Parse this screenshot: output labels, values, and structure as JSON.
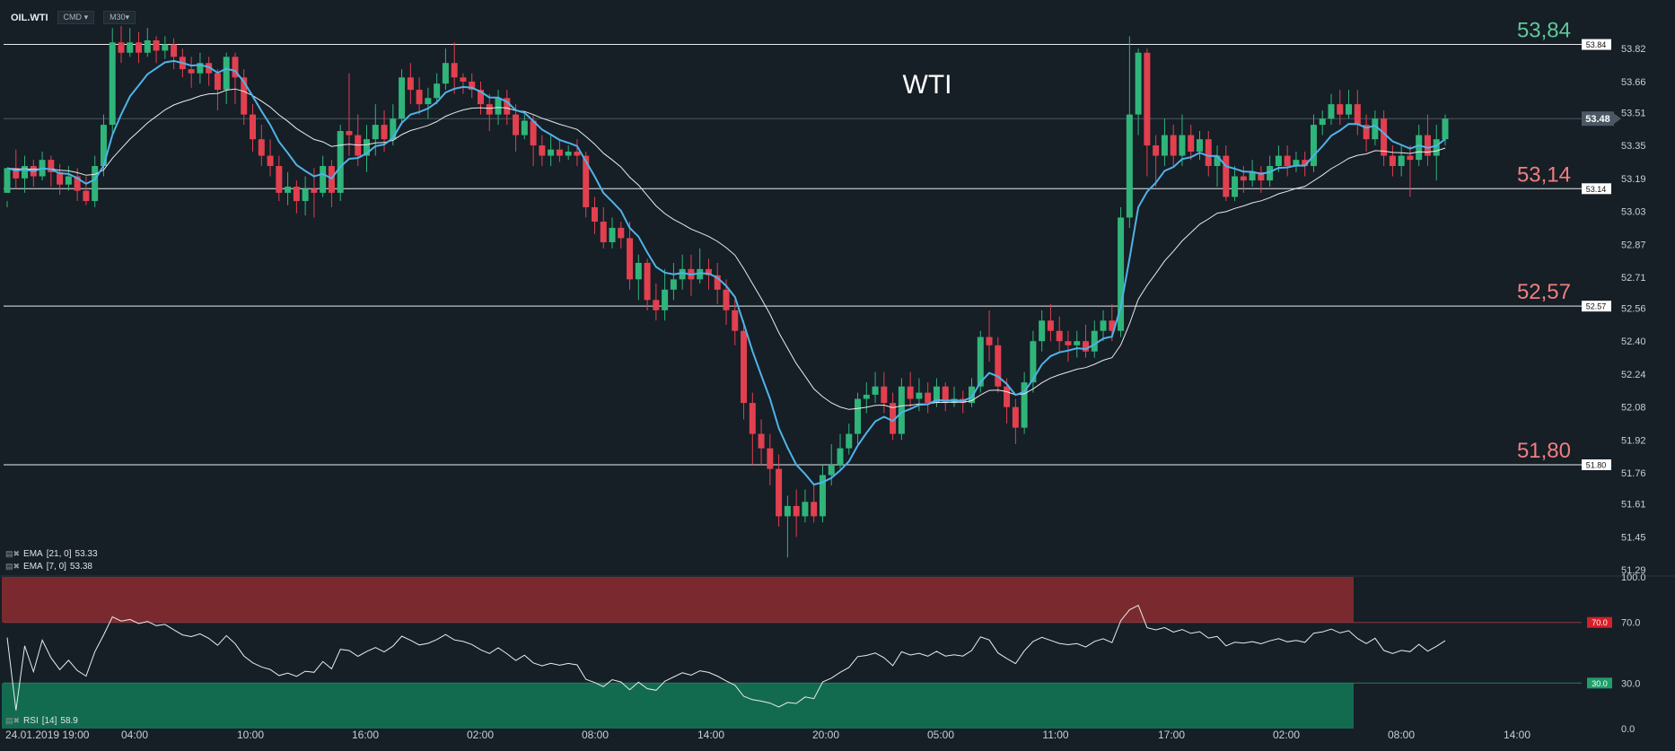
{
  "header": {
    "symbol": "OIL.WTI",
    "instrument_type": "CMD",
    "timeframe": "M30"
  },
  "chart_data": {
    "type": "candlestick",
    "title": "WTI",
    "y_ticks": [
      "53.82",
      "53.66",
      "53.51",
      "53.35",
      "53.19",
      "53.03",
      "52.87",
      "52.71",
      "52.56",
      "52.40",
      "52.24",
      "52.08",
      "51.92",
      "51.76",
      "51.61",
      "51.45",
      "51.29"
    ],
    "y_range": [
      51.26,
      53.96
    ],
    "x_ticks": [
      "24.01.2019  19:00",
      "04:00",
      "10:00",
      "16:00",
      "02:00",
      "08:00",
      "14:00",
      "20:00",
      "05:00",
      "11:00",
      "17:00",
      "02:00",
      "08:00",
      "14:00"
    ],
    "current_price": "53.48",
    "levels": [
      {
        "value": 53.84,
        "label": "53,84",
        "tag": "53.84",
        "color": "#5fc79a"
      },
      {
        "value": 53.14,
        "label": "53,14",
        "tag": "53.14",
        "color": "#ef7f7f"
      },
      {
        "value": 52.57,
        "label": "52,57",
        "tag": "52.57",
        "color": "#ef7f7f"
      },
      {
        "value": 51.8,
        "label": "51,80",
        "tag": "51.80",
        "color": "#ef7f7f"
      }
    ],
    "candles": [
      [
        53.12,
        53.24,
        53.08,
        53.05
      ],
      [
        53.24,
        53.19,
        53.33,
        53.14
      ],
      [
        53.19,
        53.25,
        53.3,
        53.12
      ],
      [
        53.25,
        53.2,
        53.28,
        53.15
      ],
      [
        53.2,
        53.28,
        53.32,
        53.18
      ],
      [
        53.28,
        53.22,
        53.3,
        53.15
      ],
      [
        53.22,
        53.16,
        53.26,
        53.11
      ],
      [
        53.16,
        53.2,
        53.25,
        53.13
      ],
      [
        53.2,
        53.13,
        53.24,
        53.08
      ],
      [
        53.13,
        53.08,
        53.2,
        53.06
      ],
      [
        53.08,
        53.25,
        53.3,
        53.05
      ],
      [
        53.25,
        53.45,
        53.5,
        53.2
      ],
      [
        53.45,
        53.85,
        53.92,
        53.4
      ],
      [
        53.85,
        53.8,
        53.93,
        53.75
      ],
      [
        53.8,
        53.85,
        53.92,
        53.78
      ],
      [
        53.85,
        53.8,
        53.9,
        53.75
      ],
      [
        53.8,
        53.86,
        53.92,
        53.78
      ],
      [
        53.86,
        53.81,
        53.88,
        53.75
      ],
      [
        53.81,
        53.84,
        53.88,
        53.77
      ],
      [
        53.84,
        53.78,
        53.87,
        53.72
      ],
      [
        53.78,
        53.72,
        53.82,
        53.68
      ],
      [
        53.72,
        53.7,
        53.78,
        53.63
      ],
      [
        53.7,
        53.75,
        53.8,
        53.65
      ],
      [
        53.75,
        53.7,
        53.78,
        53.64
      ],
      [
        53.7,
        53.62,
        53.72,
        53.52
      ],
      [
        53.62,
        53.78,
        53.8,
        53.55
      ],
      [
        53.78,
        53.68,
        53.8,
        53.55
      ],
      [
        53.68,
        53.5,
        53.72,
        53.45
      ],
      [
        53.5,
        53.38,
        53.55,
        53.32
      ],
      [
        53.38,
        53.3,
        53.45,
        53.25
      ],
      [
        53.3,
        53.25,
        53.38,
        53.2
      ],
      [
        53.25,
        53.12,
        53.3,
        53.08
      ],
      [
        53.12,
        53.15,
        53.22,
        53.06
      ],
      [
        53.15,
        53.08,
        53.18,
        53.02
      ],
      [
        53.08,
        53.14,
        53.2,
        53.01
      ],
      [
        53.14,
        53.12,
        53.24,
        53.0
      ],
      [
        53.12,
        53.25,
        53.3,
        53.1
      ],
      [
        53.25,
        53.12,
        53.28,
        53.05
      ],
      [
        53.12,
        53.42,
        53.45,
        53.08
      ],
      [
        53.42,
        53.4,
        53.7,
        53.3
      ],
      [
        53.4,
        53.3,
        53.5,
        53.25
      ],
      [
        53.3,
        53.38,
        53.45,
        53.22
      ],
      [
        53.38,
        53.45,
        53.55,
        53.3
      ],
      [
        53.45,
        53.38,
        53.52,
        53.32
      ],
      [
        53.38,
        53.48,
        53.55,
        53.35
      ],
      [
        53.48,
        53.68,
        53.72,
        53.45
      ],
      [
        53.68,
        53.62,
        53.75,
        53.55
      ],
      [
        53.62,
        53.55,
        53.68,
        53.5
      ],
      [
        53.55,
        53.58,
        53.63,
        53.48
      ],
      [
        53.58,
        53.65,
        53.7,
        53.55
      ],
      [
        53.65,
        53.75,
        53.82,
        53.62
      ],
      [
        53.75,
        53.68,
        53.85,
        53.6
      ],
      [
        53.68,
        53.66,
        53.7,
        53.6
      ],
      [
        53.66,
        53.62,
        53.7,
        53.58
      ],
      [
        53.62,
        53.55,
        53.66,
        53.5
      ],
      [
        53.55,
        53.5,
        53.6,
        53.42
      ],
      [
        53.5,
        53.58,
        53.62,
        53.45
      ],
      [
        53.58,
        53.5,
        53.62,
        53.45
      ],
      [
        53.5,
        53.4,
        53.55,
        53.32
      ],
      [
        53.4,
        53.47,
        53.5,
        53.38
      ],
      [
        53.47,
        53.35,
        53.5,
        53.25
      ],
      [
        53.35,
        53.3,
        53.4,
        53.25
      ],
      [
        53.3,
        53.33,
        53.4,
        53.25
      ],
      [
        53.33,
        53.3,
        53.38,
        53.27
      ],
      [
        53.3,
        53.32,
        53.35,
        53.28
      ],
      [
        53.32,
        53.3,
        53.38,
        53.25
      ],
      [
        53.3,
        53.05,
        53.32,
        53.0
      ],
      [
        53.05,
        52.98,
        53.1,
        52.92
      ],
      [
        52.98,
        52.88,
        53.05,
        52.85
      ],
      [
        52.88,
        52.95,
        53.0,
        52.85
      ],
      [
        52.95,
        52.9,
        52.98,
        52.85
      ],
      [
        52.9,
        52.7,
        52.98,
        52.65
      ],
      [
        52.7,
        52.78,
        52.82,
        52.6
      ],
      [
        52.78,
        52.6,
        52.8,
        52.55
      ],
      [
        52.6,
        52.55,
        52.68,
        52.5
      ],
      [
        52.55,
        52.65,
        52.75,
        52.5
      ],
      [
        52.65,
        52.7,
        52.78,
        52.6
      ],
      [
        52.7,
        52.75,
        52.82,
        52.65
      ],
      [
        52.75,
        52.7,
        52.82,
        52.62
      ],
      [
        52.7,
        52.75,
        52.85,
        52.68
      ],
      [
        52.75,
        52.72,
        52.8,
        52.65
      ],
      [
        52.72,
        52.65,
        52.78,
        52.58
      ],
      [
        52.65,
        52.55,
        52.7,
        52.48
      ],
      [
        52.55,
        52.45,
        52.6,
        52.38
      ],
      [
        52.45,
        52.1,
        52.5,
        52.02
      ],
      [
        52.1,
        51.95,
        52.15,
        51.8
      ],
      [
        51.95,
        51.88,
        52.02,
        51.8
      ],
      [
        51.88,
        51.78,
        51.95,
        51.7
      ],
      [
        51.78,
        51.55,
        51.85,
        51.5
      ],
      [
        51.55,
        51.6,
        51.65,
        51.35
      ],
      [
        51.6,
        51.55,
        51.68,
        51.45
      ],
      [
        51.55,
        51.62,
        51.68,
        51.52
      ],
      [
        51.62,
        51.55,
        51.7,
        51.52
      ],
      [
        51.55,
        51.75,
        51.8,
        51.52
      ],
      [
        51.75,
        51.8,
        51.9,
        51.7
      ],
      [
        51.8,
        51.88,
        51.95,
        51.78
      ],
      [
        51.88,
        51.95,
        52.0,
        51.85
      ],
      [
        51.95,
        52.12,
        52.15,
        51.9
      ],
      [
        52.12,
        52.14,
        52.2,
        52.05
      ],
      [
        52.14,
        52.18,
        52.25,
        52.1
      ],
      [
        52.18,
        52.1,
        52.25,
        52.05
      ],
      [
        52.1,
        51.95,
        52.15,
        51.92
      ],
      [
        51.95,
        52.18,
        52.22,
        51.92
      ],
      [
        52.18,
        52.12,
        52.25,
        52.08
      ],
      [
        52.12,
        52.15,
        52.22,
        52.06
      ],
      [
        52.15,
        52.1,
        52.2,
        52.05
      ],
      [
        52.1,
        52.18,
        52.22,
        52.08
      ],
      [
        52.18,
        52.1,
        52.2,
        52.06
      ],
      [
        52.1,
        52.12,
        52.18,
        52.08
      ],
      [
        52.12,
        52.1,
        52.16,
        52.05
      ],
      [
        52.1,
        52.18,
        52.22,
        52.08
      ],
      [
        52.18,
        52.42,
        52.45,
        52.15
      ],
      [
        52.42,
        52.38,
        52.55,
        52.3
      ],
      [
        52.38,
        52.18,
        52.42,
        52.15
      ],
      [
        52.18,
        52.08,
        52.22,
        52.0
      ],
      [
        52.08,
        51.98,
        52.12,
        51.9
      ],
      [
        51.98,
        52.2,
        52.25,
        51.95
      ],
      [
        52.2,
        52.4,
        52.45,
        52.15
      ],
      [
        52.4,
        52.5,
        52.55,
        52.35
      ],
      [
        52.5,
        52.45,
        52.58,
        52.4
      ],
      [
        52.45,
        52.4,
        52.52,
        52.35
      ],
      [
        52.4,
        52.38,
        52.45,
        52.3
      ],
      [
        52.38,
        52.4,
        52.45,
        52.32
      ],
      [
        52.4,
        52.35,
        52.48,
        52.32
      ],
      [
        52.35,
        52.45,
        52.5,
        52.32
      ],
      [
        52.45,
        52.5,
        52.55,
        52.4
      ],
      [
        52.5,
        52.45,
        52.58,
        52.4
      ],
      [
        52.45,
        53.0,
        53.05,
        52.42
      ],
      [
        53.0,
        53.5,
        53.88,
        52.95
      ],
      [
        53.5,
        53.8,
        53.82,
        53.4
      ],
      [
        53.8,
        53.35,
        53.82,
        53.2
      ],
      [
        53.35,
        53.3,
        53.4,
        53.15
      ],
      [
        53.3,
        53.4,
        53.48,
        53.25
      ],
      [
        53.4,
        53.3,
        53.45,
        53.25
      ],
      [
        53.3,
        53.4,
        53.5,
        53.25
      ],
      [
        53.4,
        53.32,
        53.45,
        53.28
      ],
      [
        53.32,
        53.38,
        53.42,
        53.28
      ],
      [
        53.38,
        53.25,
        53.42,
        53.2
      ],
      [
        53.25,
        53.3,
        53.35,
        53.15
      ],
      [
        53.3,
        53.1,
        53.35,
        53.08
      ],
      [
        53.1,
        53.2,
        53.25,
        53.08
      ],
      [
        53.2,
        53.18,
        53.25,
        53.12
      ],
      [
        53.18,
        53.22,
        53.28,
        53.15
      ],
      [
        53.22,
        53.18,
        53.25,
        53.12
      ],
      [
        53.18,
        53.25,
        53.3,
        53.15
      ],
      [
        53.25,
        53.3,
        53.35,
        53.22
      ],
      [
        53.3,
        53.25,
        53.35,
        53.2
      ],
      [
        53.25,
        53.28,
        53.32,
        53.22
      ],
      [
        53.28,
        53.25,
        53.32,
        53.2
      ],
      [
        53.25,
        53.45,
        53.5,
        53.22
      ],
      [
        53.45,
        53.48,
        53.52,
        53.4
      ],
      [
        53.48,
        53.55,
        53.6,
        53.45
      ],
      [
        53.55,
        53.5,
        53.62,
        53.45
      ],
      [
        53.5,
        53.55,
        53.62,
        53.48
      ],
      [
        53.55,
        53.45,
        53.62,
        53.4
      ],
      [
        53.45,
        53.38,
        53.5,
        53.32
      ],
      [
        53.38,
        53.48,
        53.52,
        53.35
      ],
      [
        53.48,
        53.3,
        53.52,
        53.25
      ],
      [
        53.3,
        53.25,
        53.35,
        53.2
      ],
      [
        53.25,
        53.3,
        53.35,
        53.2
      ],
      [
        53.3,
        53.28,
        53.35,
        53.1
      ],
      [
        53.28,
        53.4,
        53.45,
        53.25
      ],
      [
        53.4,
        53.3,
        53.5,
        53.25
      ],
      [
        53.3,
        53.38,
        53.45,
        53.18
      ],
      [
        53.38,
        53.48,
        53.5,
        53.35
      ]
    ],
    "ema_fast": {
      "name": "EMA",
      "params": "[7, 0]",
      "value": "53.38",
      "color": "#4fb3e8"
    },
    "ema_slow": {
      "name": "EMA",
      "params": "[21, 0]",
      "value": "53.33",
      "color": "#e8ecef"
    },
    "rsi": {
      "name": "RSI",
      "params": "[14]",
      "value": "58.9",
      "y_ticks": [
        "100.0",
        "70.0",
        "30.0",
        "0.0"
      ],
      "overbought": "70.0",
      "oversold": "30.0"
    }
  }
}
